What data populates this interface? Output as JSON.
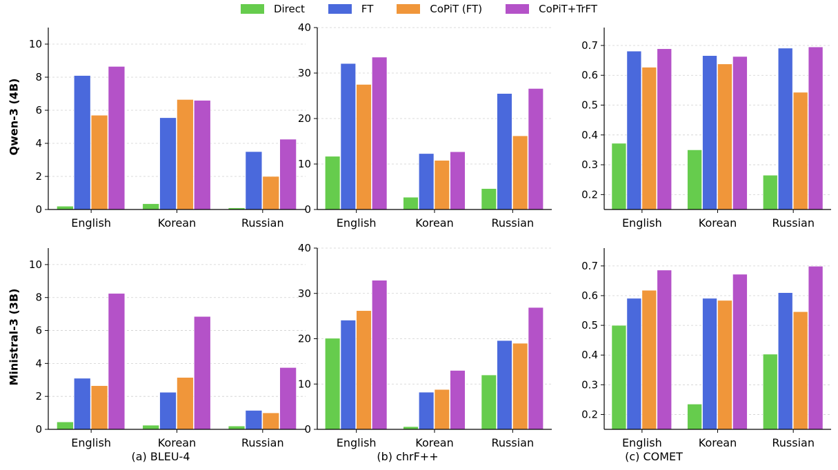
{
  "legend": {
    "items": [
      {
        "label": "Direct",
        "color": "#66cc4d"
      },
      {
        "label": "FT",
        "color": "#4a69dc"
      },
      {
        "label": "CoPiT (FT)",
        "color": "#f0963a"
      },
      {
        "label": "CoPiT+TrFT",
        "color": "#b452c8"
      }
    ]
  },
  "rows": [
    {
      "label": "Qwen-3 (4B)"
    },
    {
      "label": "Ministral-3 (3B)"
    }
  ],
  "metrics": [
    {
      "label": "(a) BLEU-4"
    },
    {
      "label": "(b) chrF++"
    },
    {
      "label": "(c) COMET"
    }
  ],
  "chart_data": [
    {
      "type": "bar",
      "model": "Qwen-3 (4B)",
      "metric": "(a) BLEU-4",
      "categories": [
        "English",
        "Korean",
        "Russian"
      ],
      "series": [
        {
          "name": "Direct",
          "values": [
            0.2,
            0.35,
            0.1
          ]
        },
        {
          "name": "FT",
          "values": [
            8.1,
            5.55,
            3.5
          ]
        },
        {
          "name": "CoPiT (FT)",
          "values": [
            5.7,
            6.65,
            2.0
          ]
        },
        {
          "name": "CoPiT+TrFT",
          "values": [
            8.65,
            6.6,
            4.25
          ]
        }
      ],
      "ylim": [
        0,
        11
      ],
      "yticks": [
        0,
        2,
        4,
        6,
        8,
        10
      ],
      "grid": true
    },
    {
      "type": "bar",
      "model": "Qwen-3 (4B)",
      "metric": "(b) chrF++",
      "categories": [
        "English",
        "Korean",
        "Russian"
      ],
      "series": [
        {
          "name": "Direct",
          "values": [
            11.7,
            2.7,
            4.6
          ]
        },
        {
          "name": "FT",
          "values": [
            32.1,
            12.3,
            25.5
          ]
        },
        {
          "name": "CoPiT (FT)",
          "values": [
            27.5,
            10.8,
            16.2
          ]
        },
        {
          "name": "CoPiT+TrFT",
          "values": [
            33.5,
            12.7,
            26.6
          ]
        }
      ],
      "ylim": [
        0,
        40
      ],
      "yticks": [
        0,
        10,
        20,
        30,
        40
      ],
      "grid": true
    },
    {
      "type": "bar",
      "model": "Qwen-3 (4B)",
      "metric": "(c) COMET",
      "categories": [
        "English",
        "Korean",
        "Russian"
      ],
      "series": [
        {
          "name": "Direct",
          "values": [
            0.372,
            0.35,
            0.265
          ]
        },
        {
          "name": "FT",
          "values": [
            0.681,
            0.666,
            0.691
          ]
        },
        {
          "name": "CoPiT (FT)",
          "values": [
            0.627,
            0.638,
            0.543
          ]
        },
        {
          "name": "CoPiT+TrFT",
          "values": [
            0.689,
            0.663,
            0.695
          ]
        }
      ],
      "ylim": [
        0.15,
        0.76
      ],
      "yticks": [
        0.2,
        0.3,
        0.4,
        0.5,
        0.6,
        0.7
      ],
      "grid": true
    },
    {
      "type": "bar",
      "model": "Ministral-3 (3B)",
      "metric": "(a) BLEU-4",
      "categories": [
        "English",
        "Korean",
        "Russian"
      ],
      "series": [
        {
          "name": "Direct",
          "values": [
            0.45,
            0.25,
            0.2
          ]
        },
        {
          "name": "FT",
          "values": [
            3.1,
            2.25,
            1.15
          ]
        },
        {
          "name": "CoPiT (FT)",
          "values": [
            2.65,
            3.15,
            1.0
          ]
        },
        {
          "name": "CoPiT+TrFT",
          "values": [
            8.25,
            6.85,
            3.75
          ]
        }
      ],
      "ylim": [
        0,
        11
      ],
      "yticks": [
        0,
        2,
        4,
        6,
        8,
        10
      ],
      "grid": true
    },
    {
      "type": "bar",
      "model": "Ministral-3 (3B)",
      "metric": "(b) chrF++",
      "categories": [
        "English",
        "Korean",
        "Russian"
      ],
      "series": [
        {
          "name": "Direct",
          "values": [
            20.1,
            0.6,
            12.0
          ]
        },
        {
          "name": "FT",
          "values": [
            24.1,
            8.2,
            19.6
          ]
        },
        {
          "name": "CoPiT (FT)",
          "values": [
            26.2,
            8.8,
            19.0
          ]
        },
        {
          "name": "CoPiT+TrFT",
          "values": [
            32.9,
            13.0,
            26.9
          ]
        }
      ],
      "ylim": [
        0,
        40
      ],
      "yticks": [
        0,
        10,
        20,
        30,
        40
      ],
      "grid": true
    },
    {
      "type": "bar",
      "model": "Ministral-3 (3B)",
      "metric": "(c) COMET",
      "categories": [
        "English",
        "Korean",
        "Russian"
      ],
      "series": [
        {
          "name": "Direct",
          "values": [
            0.5,
            0.235,
            0.403
          ]
        },
        {
          "name": "FT",
          "values": [
            0.591,
            0.591,
            0.61
          ]
        },
        {
          "name": "CoPiT (FT)",
          "values": [
            0.618,
            0.584,
            0.546
          ]
        },
        {
          "name": "CoPiT+TrFT",
          "values": [
            0.686,
            0.672,
            0.699
          ]
        }
      ],
      "ylim": [
        0.15,
        0.76
      ],
      "yticks": [
        0.2,
        0.3,
        0.4,
        0.5,
        0.6,
        0.7
      ],
      "grid": true
    }
  ]
}
